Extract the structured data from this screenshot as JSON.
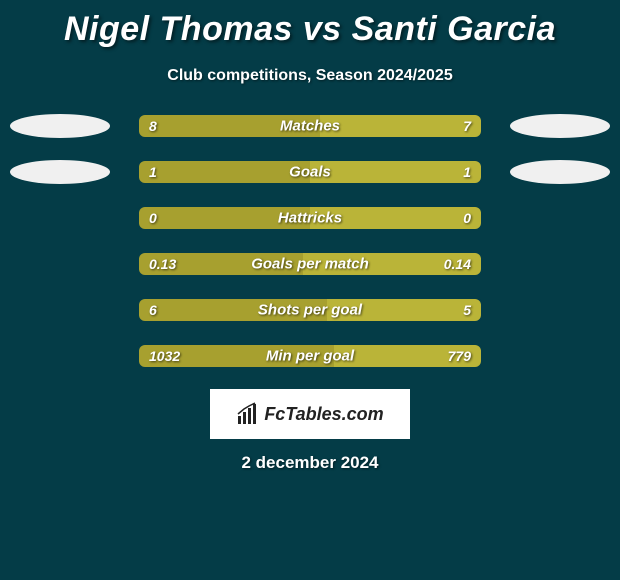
{
  "title": "Nigel Thomas vs Santi Garcia",
  "subtitle": "Club competitions, Season 2024/2025",
  "date": "2 december 2024",
  "colors": {
    "background": "#043c47",
    "bar_left": "#a7a02f",
    "bar_right": "#bab438",
    "ellipse": "#f0f0f0",
    "text": "#ffffff"
  },
  "logo": {
    "text": "FcTables.com"
  },
  "stats": [
    {
      "label": "Matches",
      "left_val": "8",
      "right_val": "7",
      "left_pct": 53,
      "show_ellipses": true
    },
    {
      "label": "Goals",
      "left_val": "1",
      "right_val": "1",
      "left_pct": 50,
      "show_ellipses": true
    },
    {
      "label": "Hattricks",
      "left_val": "0",
      "right_val": "0",
      "left_pct": 50,
      "show_ellipses": false
    },
    {
      "label": "Goals per match",
      "left_val": "0.13",
      "right_val": "0.14",
      "left_pct": 48,
      "show_ellipses": false
    },
    {
      "label": "Shots per goal",
      "left_val": "6",
      "right_val": "5",
      "left_pct": 55,
      "show_ellipses": false
    },
    {
      "label": "Min per goal",
      "left_val": "1032",
      "right_val": "779",
      "left_pct": 57,
      "show_ellipses": false
    }
  ]
}
